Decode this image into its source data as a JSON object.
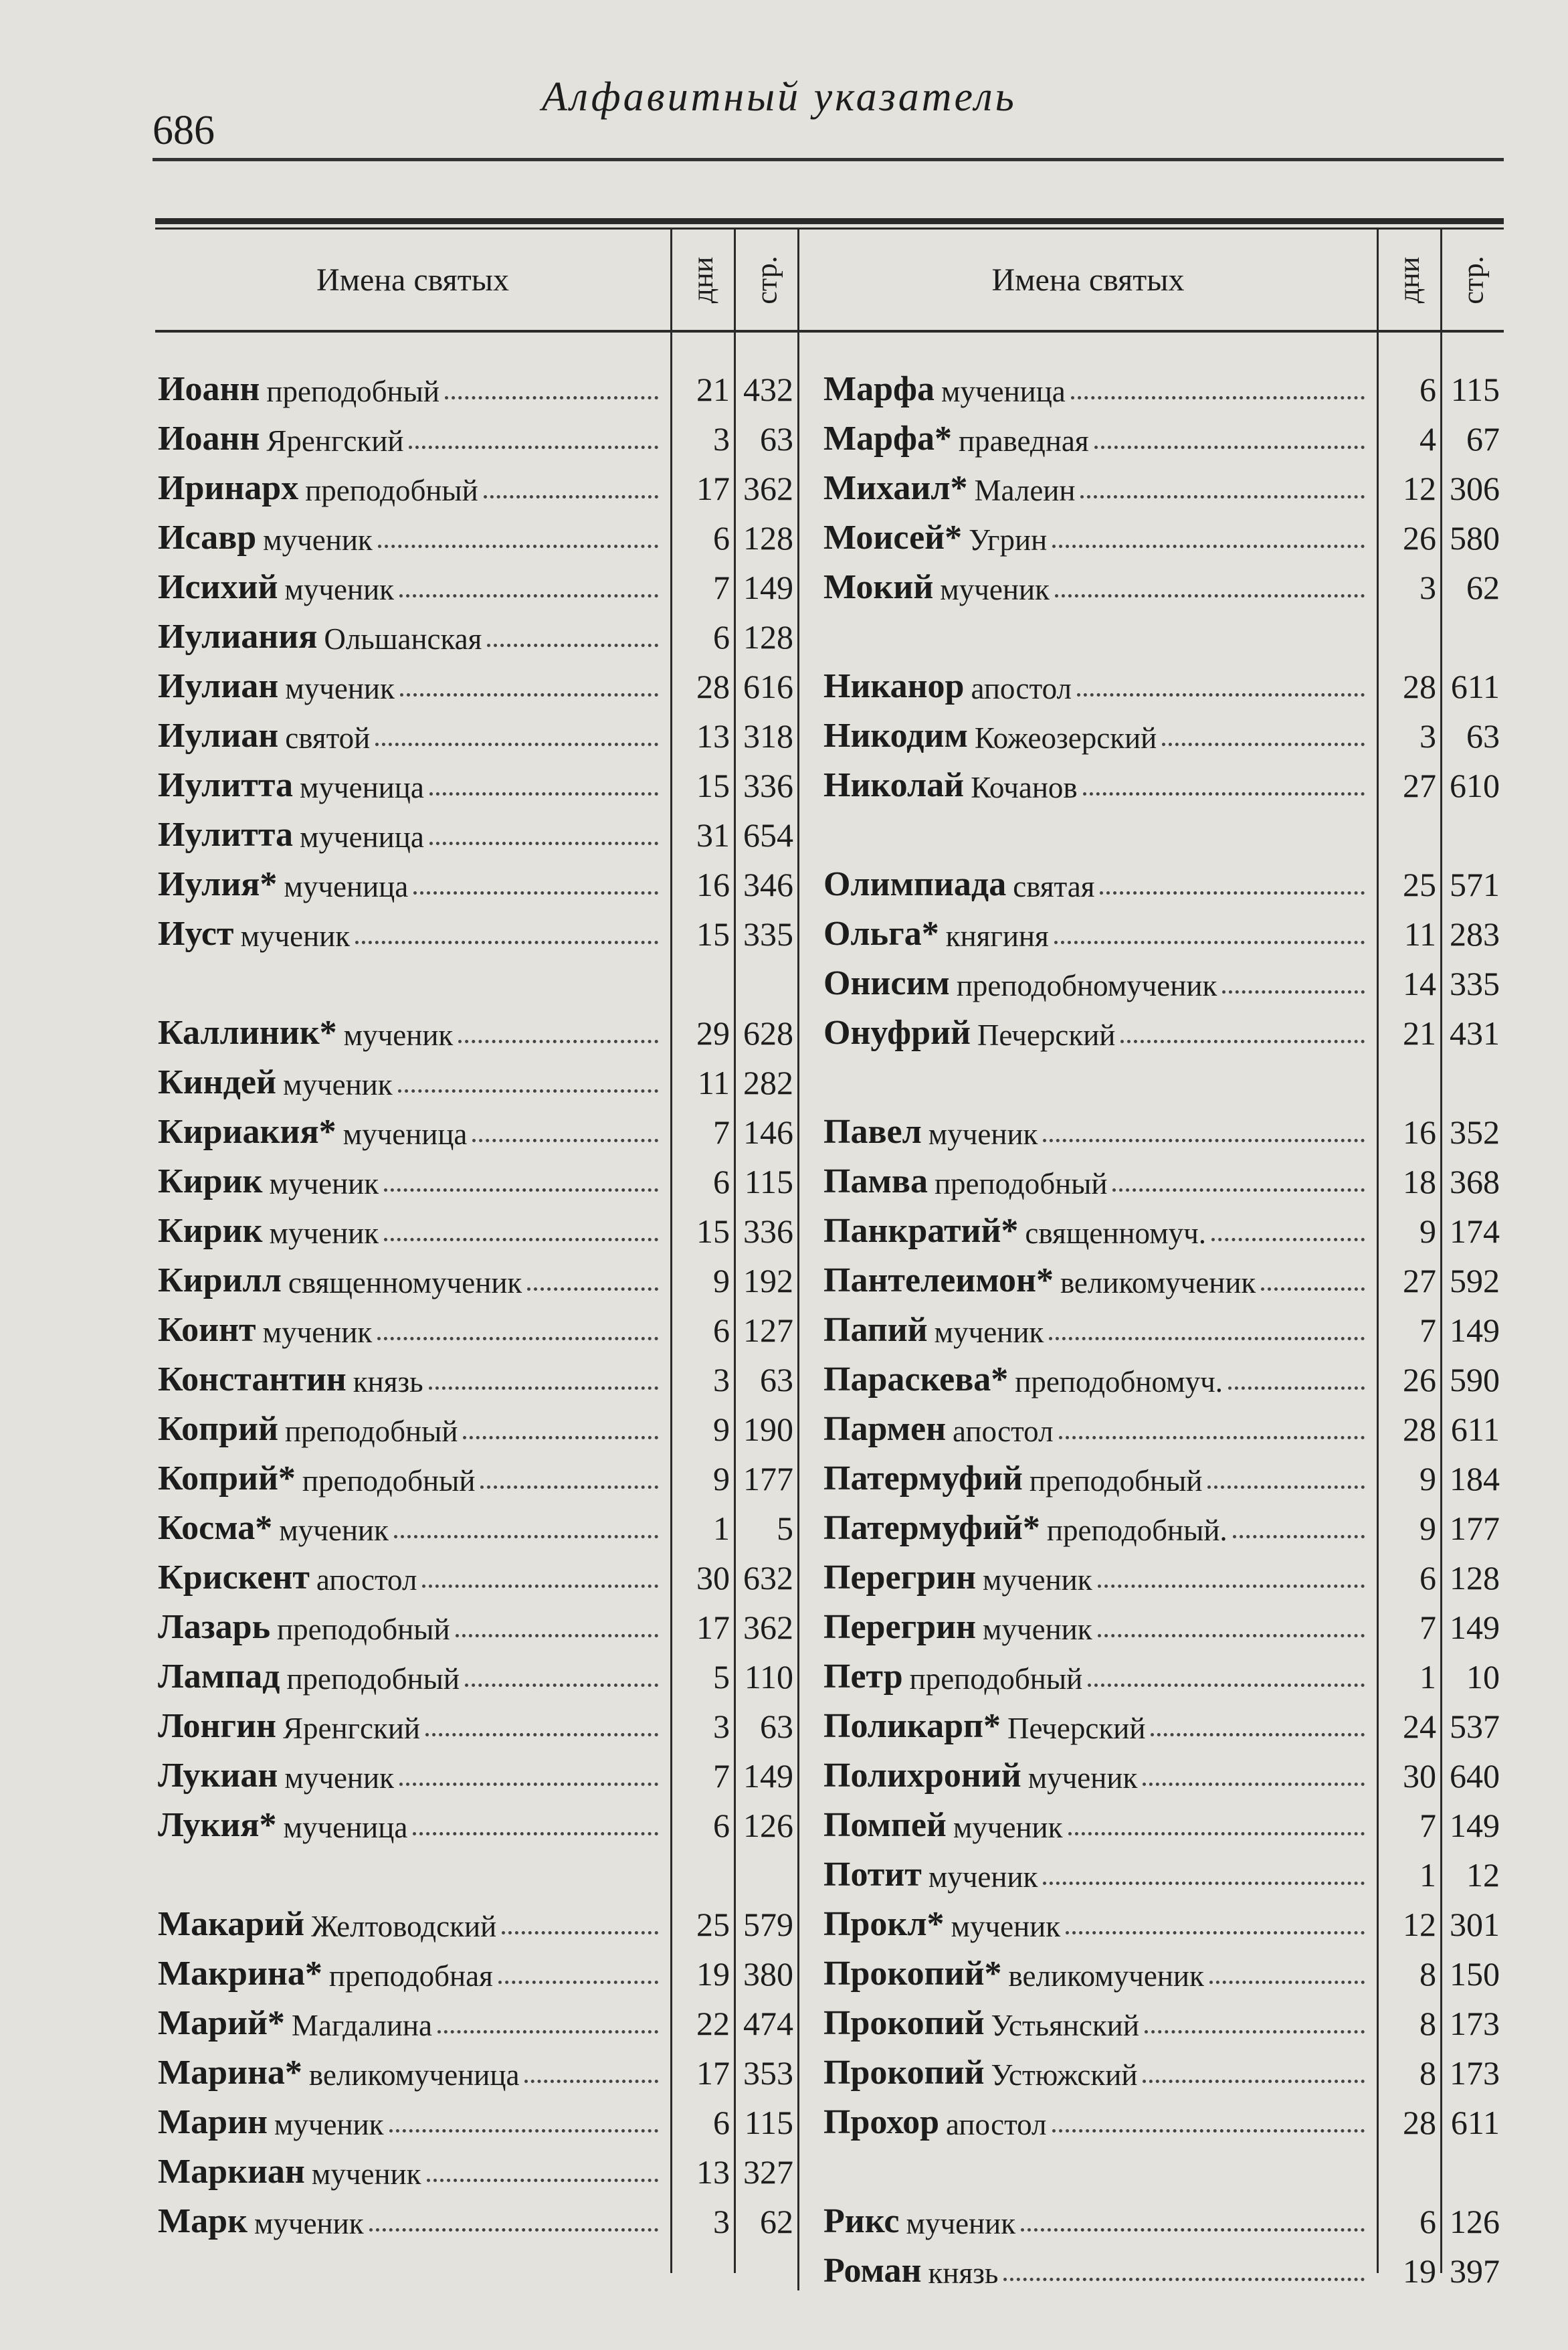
{
  "header": {
    "page_number": "686",
    "running_title": "Алфавитный указатель"
  },
  "columns": {
    "name": "Имена святых",
    "days": "дни",
    "page": "стр."
  },
  "left": {
    "groups": [
      [
        {
          "name": "Иоанн",
          "desc": "преподобный",
          "day": "21",
          "page": "432"
        },
        {
          "name": "Иоанн",
          "desc": "Яренгский",
          "day": "3",
          "page": "63"
        },
        {
          "name": "Иринарх",
          "desc": "преподобный",
          "day": "17",
          "page": "362"
        },
        {
          "name": "Исавр",
          "desc": "мученик",
          "day": "6",
          "page": "128"
        },
        {
          "name": "Исихий",
          "desc": "мученик",
          "day": "7",
          "page": "149"
        },
        {
          "name": "Иулиания",
          "desc": "Ольшанская",
          "day": "6",
          "page": "128"
        },
        {
          "name": "Иулиан",
          "desc": "мученик",
          "day": "28",
          "page": "616"
        },
        {
          "name": "Иулиан",
          "desc": "святой",
          "day": "13",
          "page": "318"
        },
        {
          "name": "Иулитта",
          "desc": "мученица",
          "day": "15",
          "page": "336"
        },
        {
          "name": "Иулитта",
          "desc": "мученица",
          "day": "31",
          "page": "654"
        },
        {
          "name": "Иулия*",
          "desc": "мученица",
          "day": "16",
          "page": "346"
        },
        {
          "name": "Иуст",
          "desc": "мученик",
          "day": "15",
          "page": "335"
        }
      ],
      [
        {
          "name": "Каллиник*",
          "desc": "мученик",
          "day": "29",
          "page": "628"
        },
        {
          "name": "Киндей",
          "desc": "мученик",
          "day": "11",
          "page": "282"
        },
        {
          "name": "Кириакия*",
          "desc": "мученица",
          "day": "7",
          "page": "146"
        },
        {
          "name": "Кирик",
          "desc": "мученик",
          "day": "6",
          "page": "115"
        },
        {
          "name": "Кирик",
          "desc": "мученик",
          "day": "15",
          "page": "336"
        },
        {
          "name": "Кирилл",
          "desc": "священномученик",
          "day": "9",
          "page": "192"
        },
        {
          "name": "Коинт",
          "desc": "мученик",
          "day": "6",
          "page": "127"
        },
        {
          "name": "Константин",
          "desc": "князь",
          "day": "3",
          "page": "63"
        },
        {
          "name": "Коприй",
          "desc": "преподобный",
          "day": "9",
          "page": "190"
        },
        {
          "name": "Коприй*",
          "desc": "преподобный",
          "day": "9",
          "page": "177"
        },
        {
          "name": "Косма*",
          "desc": "мученик",
          "day": "1",
          "page": "5"
        },
        {
          "name": "Крискент",
          "desc": "апостол",
          "day": "30",
          "page": "632"
        },
        {
          "name": "Лазарь",
          "desc": "преподобный",
          "day": "17",
          "page": "362"
        },
        {
          "name": "Лампад",
          "desc": "преподобный",
          "day": "5",
          "page": "110"
        },
        {
          "name": "Лонгин",
          "desc": "Яренгский",
          "day": "3",
          "page": "63"
        },
        {
          "name": "Лукиан",
          "desc": "мученик",
          "day": "7",
          "page": "149"
        },
        {
          "name": "Лукия*",
          "desc": "мученица",
          "day": "6",
          "page": "126"
        }
      ],
      [
        {
          "name": "Макарий",
          "desc": "Желтоводский",
          "day": "25",
          "page": "579"
        },
        {
          "name": "Макрина*",
          "desc": "преподобная",
          "day": "19",
          "page": "380"
        },
        {
          "name": "Марий*",
          "desc": "Магдалина",
          "day": "22",
          "page": "474"
        },
        {
          "name": "Марина*",
          "desc": "великомученица",
          "day": "17",
          "page": "353"
        },
        {
          "name": "Марин",
          "desc": "мученик",
          "day": "6",
          "page": "115"
        },
        {
          "name": "Маркиан",
          "desc": "мученик",
          "day": "13",
          "page": "327"
        },
        {
          "name": "Марк",
          "desc": "мученик",
          "day": "3",
          "page": "62"
        }
      ]
    ]
  },
  "right": {
    "groups": [
      [
        {
          "name": "Марфа",
          "desc": "мученица",
          "day": "6",
          "page": "115"
        },
        {
          "name": "Марфа*",
          "desc": "праведная",
          "day": "4",
          "page": "67"
        },
        {
          "name": "Михаил*",
          "desc": "Малеин",
          "day": "12",
          "page": "306"
        },
        {
          "name": "Моисей*",
          "desc": "Угрин",
          "day": "26",
          "page": "580"
        },
        {
          "name": "Мокий",
          "desc": "мученик",
          "day": "3",
          "page": "62"
        }
      ],
      [
        {
          "name": "Никанор",
          "desc": "апостол",
          "day": "28",
          "page": "611"
        },
        {
          "name": "Никодим",
          "desc": "Кожеозерский",
          "day": "3",
          "page": "63"
        },
        {
          "name": "Николай",
          "desc": "Кочанов",
          "day": "27",
          "page": "610"
        }
      ],
      [
        {
          "name": "Олимпиада",
          "desc": "святая",
          "day": "25",
          "page": "571"
        },
        {
          "name": "Ольга*",
          "desc": "княгиня",
          "day": "11",
          "page": "283"
        },
        {
          "name": "Онисим",
          "desc": "преподобномученик",
          "day": "14",
          "page": "335"
        },
        {
          "name": "Онуфрий",
          "desc": "Печерский",
          "day": "21",
          "page": "431"
        }
      ],
      [
        {
          "name": "Павел",
          "desc": "мученик",
          "day": "16",
          "page": "352"
        },
        {
          "name": "Памва",
          "desc": "преподобный",
          "day": "18",
          "page": "368"
        },
        {
          "name": "Панкратий*",
          "desc": "священномуч.",
          "day": "9",
          "page": "174"
        },
        {
          "name": "Пантелеимон*",
          "desc": "великомученик",
          "day": "27",
          "page": "592"
        },
        {
          "name": "Папий",
          "desc": "мученик",
          "day": "7",
          "page": "149"
        },
        {
          "name": "Параскева*",
          "desc": "преподобномуч.",
          "day": "26",
          "page": "590"
        },
        {
          "name": "Пармен",
          "desc": "апостол",
          "day": "28",
          "page": "611"
        },
        {
          "name": "Патермуфий",
          "desc": "преподобный",
          "day": "9",
          "page": "184"
        },
        {
          "name": "Патермуфий*",
          "desc": "преподобный.",
          "day": "9",
          "page": "177"
        },
        {
          "name": "Перегрин",
          "desc": "мученик",
          "day": "6",
          "page": "128"
        },
        {
          "name": "Перегрин",
          "desc": "мученик",
          "day": "7",
          "page": "149"
        },
        {
          "name": "Петр",
          "desc": "преподобный",
          "day": "1",
          "page": "10"
        },
        {
          "name": "Поликарп*",
          "desc": "Печерский",
          "day": "24",
          "page": "537"
        },
        {
          "name": "Полихроний",
          "desc": "мученик",
          "day": "30",
          "page": "640"
        },
        {
          "name": "Помпей",
          "desc": "мученик",
          "day": "7",
          "page": "149"
        },
        {
          "name": "Потит",
          "desc": "мученик",
          "day": "1",
          "page": "12"
        },
        {
          "name": "Прокл*",
          "desc": "мученик",
          "day": "12",
          "page": "301"
        },
        {
          "name": "Прокопий*",
          "desc": "великомученик",
          "day": "8",
          "page": "150"
        },
        {
          "name": "Прокопий",
          "desc": "Устьянский",
          "day": "8",
          "page": "173"
        },
        {
          "name": "Прокопий",
          "desc": "Устюжский",
          "day": "8",
          "page": "173"
        },
        {
          "name": "Прохор",
          "desc": "апостол",
          "day": "28",
          "page": "611"
        }
      ],
      [
        {
          "name": "Рикс",
          "desc": "мученик",
          "day": "6",
          "page": "126"
        },
        {
          "name": "Роман",
          "desc": "князь",
          "day": "19",
          "page": "397"
        }
      ]
    ]
  }
}
